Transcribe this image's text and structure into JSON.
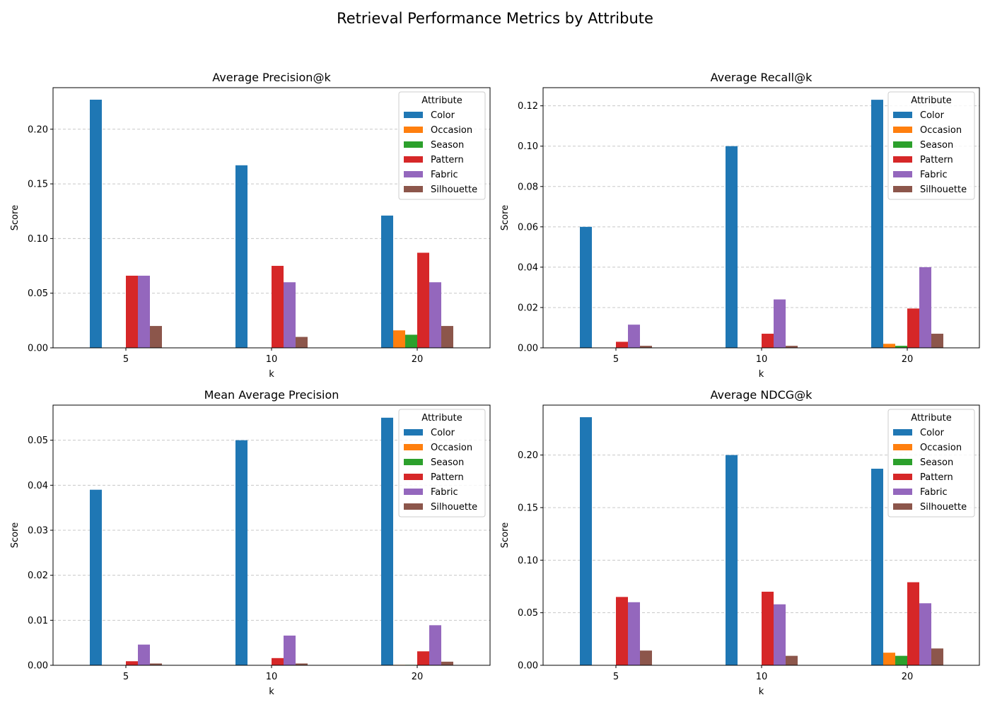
{
  "figure": {
    "title": "Retrieval Performance Metrics by Attribute"
  },
  "series_colors": {
    "Color": "#1f77b4",
    "Occasion": "#ff7f0e",
    "Season": "#2ca02c",
    "Pattern": "#d62728",
    "Fabric": "#9467bd",
    "Silhouette": "#8c564b"
  },
  "chart_data": [
    {
      "type": "bar",
      "title": "Average Precision@k",
      "xlabel": "k",
      "ylabel": "Score",
      "categories": [
        "5",
        "10",
        "20"
      ],
      "ylim": [
        0,
        0.238
      ],
      "yticks": [
        "0.00",
        "0.05",
        "0.10",
        "0.15",
        "0.20"
      ],
      "yticks_values": [
        0,
        0.05,
        0.1,
        0.15,
        0.2
      ],
      "grid": "y-dashed",
      "legend": {
        "title": "Attribute",
        "placement": "top-right"
      },
      "series": [
        {
          "name": "Color",
          "values": [
            0.227,
            0.167,
            0.121
          ]
        },
        {
          "name": "Occasion",
          "values": [
            0,
            0,
            0.016
          ]
        },
        {
          "name": "Season",
          "values": [
            0,
            0,
            0.012
          ]
        },
        {
          "name": "Pattern",
          "values": [
            0.066,
            0.075,
            0.087
          ]
        },
        {
          "name": "Fabric",
          "values": [
            0.066,
            0.06,
            0.06
          ]
        },
        {
          "name": "Silhouette",
          "values": [
            0.02,
            0.01,
            0.02
          ]
        }
      ]
    },
    {
      "type": "bar",
      "title": "Average Recall@k",
      "xlabel": "k",
      "ylabel": "Score",
      "categories": [
        "5",
        "10",
        "20"
      ],
      "ylim": [
        0,
        0.129
      ],
      "yticks": [
        "0.00",
        "0.02",
        "0.04",
        "0.06",
        "0.08",
        "0.10",
        "0.12"
      ],
      "yticks_values": [
        0,
        0.02,
        0.04,
        0.06,
        0.08,
        0.1,
        0.12
      ],
      "grid": "y-dashed",
      "legend": {
        "title": "Attribute",
        "placement": "top-right"
      },
      "series": [
        {
          "name": "Color",
          "values": [
            0.06,
            0.1,
            0.123
          ]
        },
        {
          "name": "Occasion",
          "values": [
            0,
            0,
            0.002
          ]
        },
        {
          "name": "Season",
          "values": [
            0,
            0,
            0.001
          ]
        },
        {
          "name": "Pattern",
          "values": [
            0.003,
            0.007,
            0.0195
          ]
        },
        {
          "name": "Fabric",
          "values": [
            0.0115,
            0.024,
            0.04
          ]
        },
        {
          "name": "Silhouette",
          "values": [
            0.001,
            0.001,
            0.007
          ]
        }
      ]
    },
    {
      "type": "bar",
      "title": "Mean Average Precision",
      "xlabel": "k",
      "ylabel": "Score",
      "categories": [
        "5",
        "10",
        "20"
      ],
      "ylim": [
        0,
        0.0578
      ],
      "yticks": [
        "0.00",
        "0.01",
        "0.02",
        "0.03",
        "0.04",
        "0.05"
      ],
      "yticks_values": [
        0,
        0.01,
        0.02,
        0.03,
        0.04,
        0.05
      ],
      "grid": "y-dashed",
      "legend": {
        "title": "Attribute",
        "placement": "top-right"
      },
      "series": [
        {
          "name": "Color",
          "values": [
            0.039,
            0.05,
            0.055
          ]
        },
        {
          "name": "Occasion",
          "values": [
            0,
            0,
            0.0001
          ]
        },
        {
          "name": "Season",
          "values": [
            0,
            0,
            0.0001
          ]
        },
        {
          "name": "Pattern",
          "values": [
            0.0009,
            0.0016,
            0.0031
          ]
        },
        {
          "name": "Fabric",
          "values": [
            0.0046,
            0.0066,
            0.0089
          ]
        },
        {
          "name": "Silhouette",
          "values": [
            0.0004,
            0.0004,
            0.0008
          ]
        }
      ]
    },
    {
      "type": "bar",
      "title": "Average NDCG@k",
      "xlabel": "k",
      "ylabel": "Score",
      "categories": [
        "5",
        "10",
        "20"
      ],
      "ylim": [
        0,
        0.2475
      ],
      "yticks": [
        "0.00",
        "0.05",
        "0.10",
        "0.15",
        "0.20"
      ],
      "yticks_values": [
        0,
        0.05,
        0.1,
        0.15,
        0.2
      ],
      "grid": "y-dashed",
      "legend": {
        "title": "Attribute",
        "placement": "top-right"
      },
      "series": [
        {
          "name": "Color",
          "values": [
            0.236,
            0.2,
            0.187
          ]
        },
        {
          "name": "Occasion",
          "values": [
            0,
            0,
            0.012
          ]
        },
        {
          "name": "Season",
          "values": [
            0,
            0,
            0.009
          ]
        },
        {
          "name": "Pattern",
          "values": [
            0.065,
            0.07,
            0.079
          ]
        },
        {
          "name": "Fabric",
          "values": [
            0.06,
            0.058,
            0.059
          ]
        },
        {
          "name": "Silhouette",
          "values": [
            0.014,
            0.009,
            0.016
          ]
        }
      ]
    }
  ]
}
